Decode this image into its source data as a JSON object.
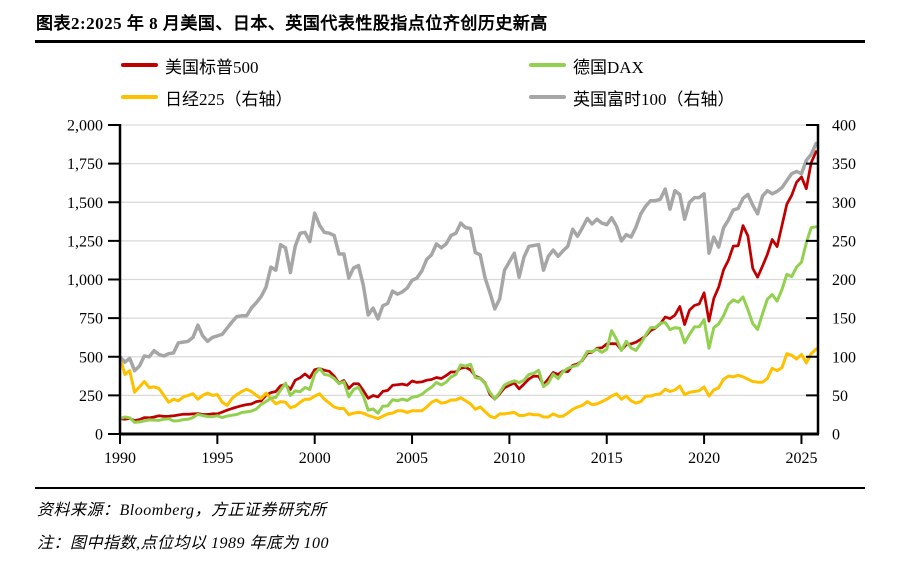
{
  "page": {
    "title": "图表2:2025 年 8 月美国、日本、英国代表性股指点位齐创历史新高",
    "source_note": "资料来源：Bloomberg，方正证券研究所",
    "footnote": "注：图中指数,点位均以 1989 年底为 100"
  },
  "legend": [
    {
      "label": "美国标普500"
    },
    {
      "label": "德国DAX"
    },
    {
      "label": "日经225（右轴）"
    },
    {
      "label": "英国富时100（右轴）"
    }
  ],
  "colors": {
    "sp500": "#C00000",
    "nikkei225": "#FFC000",
    "dax": "#92D050",
    "ftse100": "#A6A6A6",
    "gridline": "#D9D9D9",
    "axis": "#000000"
  },
  "chart_data": {
    "type": "line",
    "title": "图表2:2025 年 8 月美国、日本、英国代表性股指点位齐创历史新高",
    "note_base": "所有指数以 1989 年底 = 100",
    "x": {
      "start": 1990,
      "step": 0.25,
      "max": 2025.85,
      "tick_values": [
        1990,
        1995,
        2000,
        2005,
        2010,
        2015,
        2020,
        2025
      ],
      "tick_labels": [
        "1990",
        "1995",
        "2000",
        "2005",
        "2010",
        "2015",
        "2020",
        "2025"
      ]
    },
    "left_axis": {
      "min": 0,
      "max": 2000,
      "tick_values": [
        0,
        250,
        500,
        750,
        1000,
        1250,
        1500,
        1750,
        2000
      ],
      "tick_labels": [
        "0",
        "250",
        "500",
        "750",
        "1,000",
        "1,250",
        "1,500",
        "1,750",
        "2,000"
      ]
    },
    "right_axis": {
      "min": 0,
      "max": 400,
      "tick_values": [
        0,
        50,
        100,
        150,
        200,
        250,
        300,
        350,
        400
      ],
      "tick_labels": [
        "0",
        "50",
        "100",
        "150",
        "200",
        "250",
        "300",
        "350",
        "400"
      ]
    },
    "grid": "horizontal",
    "legend_position": "top",
    "series": [
      {
        "id": "sp500",
        "name": "美国标普500",
        "axis": "left",
        "color": "#C00000",
        "values": [
          100,
          96,
          101,
          87,
          93,
          106,
          105,
          110,
          118,
          114,
          115,
          118,
          123,
          128,
          128,
          130,
          132,
          126,
          126,
          131,
          130,
          142,
          154,
          165,
          174,
          183,
          190,
          194,
          210,
          214,
          250,
          268,
          275,
          312,
          321,
          288,
          348,
          364,
          389,
          363,
          416,
          424,
          412,
          406,
          374,
          328,
          346,
          295,
          325,
          325,
          280,
          231,
          249,
          240,
          276,
          282,
          315,
          319,
          323,
          316,
          343,
          334,
          337,
          348,
          353,
          366,
          359,
          378,
          401,
          402,
          425,
          432,
          415,
          374,
          362,
          330,
          256,
          226,
          260,
          299,
          316,
          331,
          292,
          323,
          356,
          375,
          374,
          320,
          356,
          398,
          385,
          408,
          404,
          444,
          454,
          476,
          523,
          530,
          555,
          558,
          583,
          585,
          584,
          543,
          578,
          583,
          594,
          613,
          634,
          669,
          686,
          713,
          757,
          747,
          769,
          825,
          709,
          802,
          832,
          842,
          914,
          731,
          877,
          951,
          1063,
          1124,
          1216,
          1219,
          1349,
          1282,
          1071,
          1015,
          1087,
          1163,
          1259,
          1213,
          1350,
          1487,
          1545,
          1630,
          1664,
          1588,
          1756,
          1828
        ]
      },
      {
        "id": "nikkei225",
        "name": "日经225（右轴）",
        "axis": "right",
        "color": "#FFC000",
        "values": [
          100,
          77,
          82,
          54,
          61,
          68,
          60,
          61,
          59,
          50,
          41,
          45,
          43,
          48,
          50,
          52,
          45,
          50,
          53,
          50,
          51,
          41,
          37,
          46,
          51,
          55,
          58,
          55,
          50,
          46,
          53,
          46,
          39,
          42,
          41,
          34,
          36,
          41,
          45,
          45,
          49,
          52,
          45,
          40,
          35,
          33,
          33,
          25,
          27,
          28,
          27,
          24,
          22,
          20,
          23,
          26,
          27,
          30,
          30,
          28,
          30,
          30,
          30,
          35,
          41,
          44,
          40,
          41,
          44,
          44,
          47,
          43,
          39,
          32,
          35,
          29,
          23,
          21,
          26,
          26,
          27,
          28,
          24,
          24,
          26,
          25,
          25,
          22,
          22,
          26,
          23,
          23,
          27,
          32,
          35,
          37,
          42,
          38,
          39,
          42,
          45,
          49,
          52,
          45,
          49,
          43,
          40,
          42,
          49,
          49,
          51,
          52,
          58,
          55,
          57,
          62,
          51,
          54,
          55,
          56,
          61,
          49,
          57,
          60,
          71,
          75,
          74,
          76,
          74,
          71,
          68,
          67,
          67,
          72,
          85,
          82,
          86,
          104,
          102,
          97,
          103,
          92,
          104,
          110
        ]
      },
      {
        "id": "dax",
        "name": "德国DAX",
        "axis": "left",
        "color": "#92D050",
        "values": [
          100,
          110,
          105,
          75,
          78,
          85,
          91,
          90,
          88,
          96,
          99,
          84,
          86,
          93,
          95,
          107,
          127,
          119,
          113,
          112,
          118,
          107,
          116,
          122,
          126,
          139,
          143,
          148,
          161,
          192,
          210,
          233,
          237,
          285,
          329,
          250,
          279,
          273,
          301,
          288,
          389,
          425,
          385,
          380,
          359,
          326,
          338,
          241,
          288,
          302,
          245,
          155,
          162,
          135,
          180,
          182,
          222,
          215,
          226,
          217,
          238,
          243,
          256,
          282,
          302,
          334,
          317,
          335,
          369,
          386,
          447,
          439,
          451,
          365,
          359,
          326,
          269,
          228,
          269,
          317,
          333,
          344,
          333,
          348,
          386,
          393,
          412,
          307,
          330,
          388,
          358,
          403,
          425,
          436,
          445,
          480,
          534,
          534,
          549,
          529,
          548,
          669,
          612,
          540,
          600,
          557,
          541,
          587,
          641,
          688,
          689,
          717,
          722,
          676,
          688,
          684,
          590,
          644,
          693,
          694,
          740,
          555,
          688,
          713,
          766,
          838,
          868,
          853,
          887,
          805,
          714,
          677,
          778,
          873,
          902,
          860,
          936,
          1033,
          1019,
          1080,
          1112,
          1238,
          1336,
          1341
        ]
      },
      {
        "id": "ftse100",
        "name": "英国富时100（右轴）",
        "axis": "right",
        "color": "#A6A6A6",
        "values": [
          100,
          93,
          98,
          82,
          88,
          101,
          100,
          108,
          103,
          101,
          104,
          105,
          118,
          119,
          120,
          125,
          141,
          127,
          120,
          125,
          127,
          129,
          137,
          145,
          152,
          153,
          153,
          163,
          170,
          178,
          190,
          216,
          212,
          245,
          241,
          209,
          243,
          260,
          261,
          249,
          286,
          270,
          261,
          260,
          257,
          233,
          233,
          202,
          215,
          218,
          192,
          154,
          163,
          149,
          166,
          169,
          185,
          181,
          184,
          189,
          199,
          202,
          211,
          226,
          232,
          246,
          241,
          246,
          257,
          260,
          273,
          267,
          266,
          235,
          232,
          202,
          183,
          162,
          175,
          212,
          223,
          234,
          203,
          229,
          243,
          244,
          245,
          212,
          230,
          238,
          230,
          237,
          243,
          265,
          256,
          267,
          279,
          272,
          278,
          273,
          271,
          280,
          269,
          250,
          258,
          255,
          268,
          285,
          295,
          302,
          302,
          304,
          317,
          291,
          315,
          310,
          278,
          300,
          306,
          306,
          311,
          234,
          255,
          242,
          267,
          277,
          290,
          292,
          305,
          310,
          296,
          285,
          308,
          315,
          311,
          314,
          319,
          328,
          337,
          340,
          337,
          354,
          362,
          376
        ]
      }
    ]
  }
}
